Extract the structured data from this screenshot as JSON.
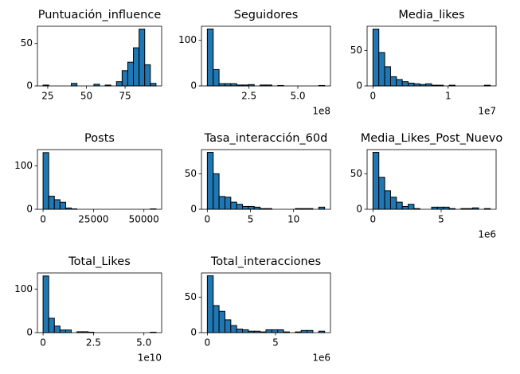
{
  "chart_data": [
    {
      "type": "histogram",
      "title": "Puntuación_influence",
      "color": "#1f77b4",
      "edgecolor": "#000000",
      "bins": [
        22,
        25.65,
        29.3,
        32.95,
        36.6,
        40.25,
        43.9,
        47.55,
        51.2,
        54.85,
        58.5,
        62.15,
        65.8,
        69.45,
        73.1,
        76.75,
        80.4,
        84.05,
        87.7,
        91.35,
        95
      ],
      "counts": [
        1,
        0,
        0,
        0,
        0,
        3,
        0,
        0,
        0,
        2,
        0,
        1,
        0,
        5,
        18,
        28,
        45,
        67,
        25,
        3
      ],
      "xlim": [
        18.35,
        98.65
      ],
      "xticks": [
        25,
        50,
        75
      ],
      "ylim": [
        0,
        70.4
      ],
      "yticks": [
        0,
        50
      ]
    },
    {
      "type": "histogram",
      "title": "Seguidores",
      "color": "#1f77b4",
      "edgecolor": "#000000",
      "bins": [
        37000000,
        67000000,
        97000000,
        127000000,
        157000000,
        187000000,
        217000000,
        247000000,
        277000000,
        307000000,
        337000000,
        367000000,
        397000000,
        427000000,
        457000000,
        487000000,
        517000000,
        547000000,
        577000000,
        607000000,
        637000000
      ],
      "counts": [
        125,
        36,
        5,
        5,
        5,
        2,
        2,
        3,
        0,
        2,
        2,
        0,
        1,
        0,
        0,
        0,
        0,
        0,
        0,
        1
      ],
      "xlim": [
        7000000,
        667000000
      ],
      "xticks": [
        {
          "value": 250000000,
          "label": "2.5"
        },
        {
          "value": 500000000,
          "label": "5.0"
        }
      ],
      "x_offset_text": "1e8",
      "ylim": [
        0,
        131
      ],
      "yticks": [
        0,
        100
      ]
    },
    {
      "type": "histogram",
      "title": "Media_likes",
      "color": "#1f77b4",
      "edgecolor": "#000000",
      "bins": [
        0,
        780000,
        1560000,
        2340000,
        3120000,
        3900000,
        4680000,
        5460000,
        6240000,
        7020000,
        7800000,
        8580000,
        9360000,
        10140000,
        10920000,
        11700000,
        12480000,
        13260000,
        14040000,
        14820000,
        15600000
      ],
      "counts": [
        80,
        47,
        27,
        13,
        9,
        6,
        4,
        3,
        2,
        3,
        1,
        1,
        0,
        1,
        0,
        0,
        0,
        0,
        0,
        1
      ],
      "xlim": [
        -780000,
        16380000
      ],
      "xticks": [
        0,
        {
          "value": 10000000,
          "label": "1"
        }
      ],
      "x_offset_text": "1e7",
      "ylim": [
        0,
        84
      ],
      "yticks": [
        0,
        50
      ]
    },
    {
      "type": "histogram",
      "title": "Posts",
      "color": "#1f77b4",
      "edgecolor": "#000000",
      "bins": [
        0,
        2800,
        5600,
        8400,
        11200,
        14000,
        16800,
        19600,
        22400,
        25200,
        28000,
        30800,
        33600,
        36400,
        39200,
        42000,
        44800,
        47600,
        50400,
        53200,
        56000
      ],
      "counts": [
        130,
        30,
        22,
        16,
        3,
        1,
        0,
        0,
        0,
        0,
        0,
        0,
        0,
        0,
        0,
        0,
        0,
        0,
        0,
        1
      ],
      "xlim": [
        -2800,
        58800
      ],
      "xticks": [
        0,
        25000,
        50000
      ],
      "ylim": [
        0,
        137
      ],
      "yticks": [
        0,
        100
      ]
    },
    {
      "type": "histogram",
      "title": "Tasa_interacción_60d",
      "color": "#1f77b4",
      "edgecolor": "#000000",
      "bins": [
        0,
        0.68,
        1.36,
        2.04,
        2.72,
        3.4,
        4.08,
        4.76,
        5.44,
        6.12,
        6.8,
        7.48,
        8.16,
        8.84,
        9.52,
        10.2,
        10.88,
        11.56,
        12.24,
        12.92,
        13.6
      ],
      "counts": [
        80,
        50,
        18,
        17,
        10,
        7,
        4,
        4,
        3,
        1,
        1,
        0,
        0,
        0,
        0,
        1,
        1,
        1,
        0,
        3
      ],
      "xlim": [
        -0.68,
        14.28
      ],
      "xticks": [
        0,
        5,
        10
      ],
      "ylim": [
        0,
        84
      ],
      "yticks": [
        0,
        50
      ]
    },
    {
      "type": "histogram",
      "title": "Media_Likes_Post_Nuevo",
      "color": "#1f77b4",
      "edgecolor": "#000000",
      "bins": [
        0,
        430000,
        860000,
        1290000,
        1720000,
        2150000,
        2580000,
        3010000,
        3440000,
        3870000,
        4300000,
        4730000,
        5160000,
        5590000,
        6020000,
        6450000,
        6880000,
        7310000,
        7740000,
        8170000,
        8600000
      ],
      "counts": [
        80,
        45,
        26,
        17,
        10,
        4,
        7,
        1,
        0,
        0,
        3,
        3,
        3,
        1,
        0,
        1,
        1,
        2,
        0,
        1
      ],
      "xlim": [
        -430000,
        9030000
      ],
      "xticks": [
        0,
        {
          "value": 5000000,
          "label": "5"
        }
      ],
      "x_offset_text": "1e6",
      "ylim": [
        0,
        84
      ],
      "yticks": [
        0,
        50
      ]
    },
    {
      "type": "histogram",
      "title": "Total_Likes",
      "color": "#1f77b4",
      "edgecolor": "#000000",
      "bins": [
        0,
        2800000000,
        5600000000,
        8400000000,
        11200000000,
        14000000000,
        16800000000,
        19600000000,
        22400000000,
        25200000000,
        28000000000,
        30800000000,
        33600000000,
        36400000000,
        39200000000,
        42000000000,
        44800000000,
        47600000000,
        50400000000,
        53200000000,
        56000000000
      ],
      "counts": [
        130,
        33,
        15,
        6,
        6,
        0,
        2,
        2,
        1,
        0,
        0,
        0,
        0,
        0,
        0,
        0,
        0,
        0,
        0,
        1
      ],
      "xlim": [
        -2800000000,
        58800000000
      ],
      "xticks": [
        0,
        {
          "value": 25000000000,
          "label": "2.5"
        },
        {
          "value": 50000000000,
          "label": "5.0"
        }
      ],
      "x_offset_text": "1e10",
      "ylim": [
        0,
        137
      ],
      "yticks": [
        0,
        100
      ]
    },
    {
      "type": "histogram",
      "title": "Total_interacciones",
      "color": "#1f77b4",
      "edgecolor": "#000000",
      "bins": [
        0,
        430000,
        860000,
        1290000,
        1720000,
        2150000,
        2580000,
        3010000,
        3440000,
        3870000,
        4300000,
        4730000,
        5160000,
        5590000,
        6020000,
        6450000,
        6880000,
        7310000,
        7740000,
        8170000,
        8600000
      ],
      "counts": [
        80,
        38,
        30,
        18,
        10,
        5,
        4,
        2,
        2,
        1,
        4,
        4,
        4,
        1,
        0,
        1,
        3,
        3,
        0,
        2
      ],
      "xlim": [
        -430000,
        9030000
      ],
      "xticks": [
        0,
        {
          "value": 5000000,
          "label": "5"
        }
      ],
      "x_offset_text": "1e6",
      "ylim": [
        0,
        84
      ],
      "yticks": [
        0,
        50
      ]
    }
  ]
}
